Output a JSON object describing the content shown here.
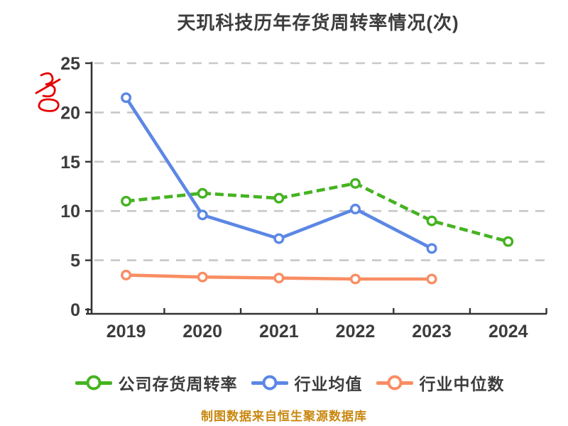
{
  "title": "天玑科技历年存货周转率情况(次)",
  "footer": "制图数据来自恒生聚源数据库",
  "watermark": {
    "name": "red-scribble-mark",
    "color": "#e60000"
  },
  "colors": {
    "company": "#45b321",
    "industry_avg": "#5b87e5",
    "industry_median": "#f98d63",
    "axis": "#333333",
    "tick_label": "#3c3c3c",
    "gridline": "#c8c8c8",
    "title_text": "#3c3c3c",
    "footer_text": "#c9870f"
  },
  "chart_data": {
    "type": "line",
    "title": "天玑科技历年存货周转率情况(次)",
    "xlabel": "",
    "ylabel": "",
    "categories": [
      "2019",
      "2020",
      "2021",
      "2022",
      "2023",
      "2024"
    ],
    "series": [
      {
        "name": "公司存货周转率",
        "color": "#45b321",
        "line_style": "dashed",
        "marker": "circle-white-fill",
        "values": [
          11.0,
          11.8,
          11.3,
          12.8,
          9.0,
          6.9
        ]
      },
      {
        "name": "行业均值",
        "color": "#5b87e5",
        "line_style": "solid",
        "marker": "circle-white-fill",
        "values": [
          21.5,
          9.6,
          7.2,
          10.2,
          6.2,
          null
        ]
      },
      {
        "name": "行业中位数",
        "color": "#f98d63",
        "line_style": "solid",
        "marker": "circle-white-fill",
        "values": [
          3.5,
          3.3,
          3.2,
          3.1,
          3.1,
          null
        ]
      }
    ],
    "ylim": [
      0,
      25
    ],
    "yticks": [
      0,
      5,
      10,
      15,
      20,
      25
    ],
    "grid": "horizontal-dashed",
    "legend_position": "bottom"
  }
}
